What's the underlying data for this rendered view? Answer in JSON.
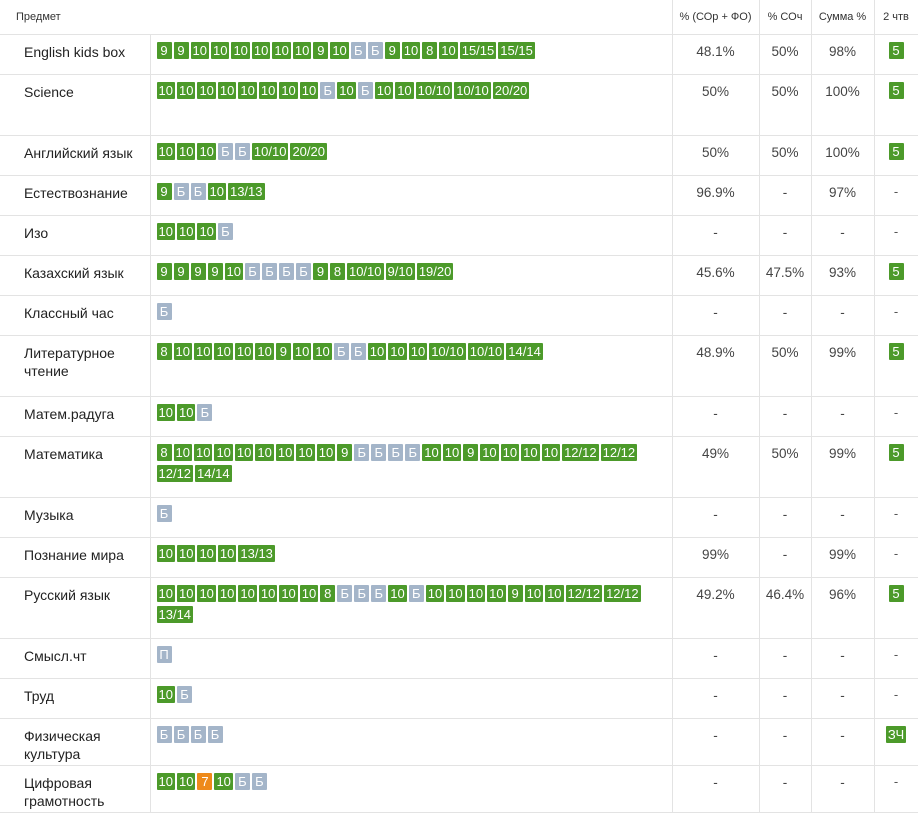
{
  "header": {
    "subject": "Предмет",
    "sor_fo": "% (СОр + ФО)",
    "soch": "% СОч",
    "sum": "Сумма %",
    "quarter": "2 чтв"
  },
  "colors": {
    "grade": "#4c9a2a",
    "absent": "#a4b5c9",
    "low": "#ee8a1a"
  },
  "rows": [
    {
      "subject": "English kids box",
      "h": 40,
      "marks": [
        "9",
        "9",
        "10",
        "10",
        "10",
        "10",
        "10",
        "10",
        "9",
        "10",
        "Б",
        "Б",
        "9",
        "10",
        "8",
        "10",
        "15/15",
        "15/15"
      ],
      "sor_fo": "48.1%",
      "soch": "50%",
      "sum": "98%",
      "quarter": "5"
    },
    {
      "subject": "Science",
      "h": 61,
      "marks": [
        "10",
        "10",
        "10",
        "10",
        "10",
        "10",
        "10",
        "10",
        "Б",
        "10",
        "Б",
        "10",
        "10",
        "10/10",
        "10/10",
        "20/20"
      ],
      "sor_fo": "50%",
      "soch": "50%",
      "sum": "100%",
      "quarter": "5"
    },
    {
      "subject": "Английский язык",
      "h": 40,
      "marks": [
        "10",
        "10",
        "10",
        "Б",
        "Б",
        "10/10",
        "20/20"
      ],
      "sor_fo": "50%",
      "soch": "50%",
      "sum": "100%",
      "quarter": "5"
    },
    {
      "subject": "Естествознание",
      "h": 40,
      "marks": [
        "9",
        "Б",
        "Б",
        "10",
        "13/13"
      ],
      "sor_fo": "96.9%",
      "soch": "-",
      "sum": "97%",
      "quarter": "-"
    },
    {
      "subject": "Изо",
      "h": 40,
      "marks": [
        "10",
        "10",
        "10",
        "Б"
      ],
      "sor_fo": "-",
      "soch": "-",
      "sum": "-",
      "quarter": "-"
    },
    {
      "subject": "Казахский язык",
      "h": 40,
      "marks": [
        "9",
        "9",
        "9",
        "9",
        "10",
        "Б",
        "Б",
        "Б",
        "Б",
        "9",
        "8",
        "10/10",
        "9/10",
        "19/20"
      ],
      "sor_fo": "45.6%",
      "soch": "47.5%",
      "sum": "93%",
      "quarter": "5"
    },
    {
      "subject": "Классный час",
      "h": 40,
      "marks": [
        "Б"
      ],
      "sor_fo": "-",
      "soch": "-",
      "sum": "-",
      "quarter": "-"
    },
    {
      "subject": "Литературное чтение",
      "h": 61,
      "marks": [
        "8",
        "10",
        "10",
        "10",
        "10",
        "10",
        "9",
        "10",
        "10",
        "Б",
        "Б",
        "10",
        "10",
        "10",
        "10/10",
        "10/10",
        "14/14"
      ],
      "sor_fo": "48.9%",
      "soch": "50%",
      "sum": "99%",
      "quarter": "5"
    },
    {
      "subject": "Матем.радуга",
      "h": 40,
      "marks": [
        "10",
        "10",
        "Б"
      ],
      "sor_fo": "-",
      "soch": "-",
      "sum": "-",
      "quarter": "-"
    },
    {
      "subject": "Математика",
      "h": 61,
      "marks": [
        "8",
        "10",
        "10",
        "10",
        "10",
        "10",
        "10",
        "10",
        "10",
        "9",
        "Б",
        "Б",
        "Б",
        "Б",
        "10",
        "10",
        "9",
        "10",
        "10",
        "10",
        "10",
        "12/12",
        "12/12",
        "12/12",
        "14/14"
      ],
      "sor_fo": "49%",
      "soch": "50%",
      "sum": "99%",
      "quarter": "5"
    },
    {
      "subject": "Музыка",
      "h": 40,
      "marks": [
        "Б"
      ],
      "sor_fo": "-",
      "soch": "-",
      "sum": "-",
      "quarter": "-"
    },
    {
      "subject": "Познание мира",
      "h": 40,
      "marks": [
        "10",
        "10",
        "10",
        "10",
        "13/13"
      ],
      "sor_fo": "99%",
      "soch": "-",
      "sum": "99%",
      "quarter": "-"
    },
    {
      "subject": "Русский язык",
      "h": 61,
      "marks": [
        "10",
        "10",
        "10",
        "10",
        "10",
        "10",
        "10",
        "10",
        "8",
        "Б",
        "Б",
        "Б",
        "10",
        "Б",
        "10",
        "10",
        "10",
        "10",
        "9",
        "10",
        "10",
        "12/12",
        "12/12",
        "13/14"
      ],
      "sor_fo": "49.2%",
      "soch": "46.4%",
      "sum": "96%",
      "quarter": "5"
    },
    {
      "subject": "Смысл.чт",
      "h": 40,
      "marks": [
        "П"
      ],
      "sor_fo": "-",
      "soch": "-",
      "sum": "-",
      "quarter": "-"
    },
    {
      "subject": "Труд",
      "h": 40,
      "marks": [
        "10",
        "Б"
      ],
      "sor_fo": "-",
      "soch": "-",
      "sum": "-",
      "quarter": "-"
    },
    {
      "subject": "Физическая культура",
      "h": 47,
      "marks": [
        "Б",
        "Б",
        "Б",
        "Б"
      ],
      "sor_fo": "-",
      "soch": "-",
      "sum": "-",
      "quarter": "ЗЧ"
    },
    {
      "subject": "Цифровая грамотность",
      "h": 47,
      "marks": [
        "10",
        "10",
        "7",
        "10",
        "Б",
        "Б"
      ],
      "sor_fo": "-",
      "soch": "-",
      "sum": "-",
      "quarter": "-"
    }
  ]
}
